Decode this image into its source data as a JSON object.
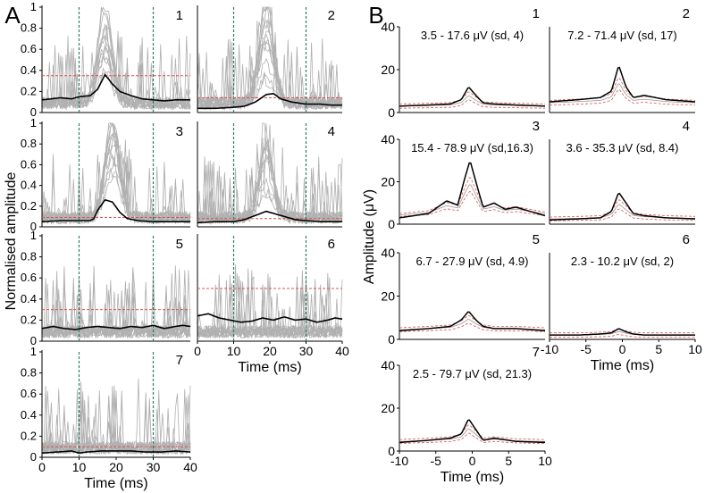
{
  "chart_data": {
    "panel_labels": [
      "A",
      "B"
    ],
    "panelA": {
      "type": "line",
      "ylabel": "Normalised amplitude",
      "xlabel": "Time (ms)",
      "xlim": [
        0,
        40
      ],
      "ylim": [
        0,
        1
      ],
      "yticks": [
        "0",
        "0.2",
        "0.4",
        "0.6",
        "0.8",
        "1"
      ],
      "xticks": [
        "0",
        "10",
        "20",
        "30",
        "40"
      ],
      "window_markers_ms": [
        10,
        30
      ],
      "threshold_color": "#d9534f",
      "marker_color": "#2e7d6b",
      "trace_color": "#b0b0b0",
      "mean_color": "#000000",
      "subplots": [
        {
          "id": "1",
          "threshold": 0.35,
          "mean_x": [
            0,
            5,
            8,
            10,
            13,
            15,
            17,
            19,
            21,
            24,
            27,
            30,
            33,
            36,
            40
          ],
          "mean_y": [
            0.12,
            0.14,
            0.13,
            0.15,
            0.16,
            0.22,
            0.36,
            0.27,
            0.2,
            0.16,
            0.13,
            0.12,
            0.11,
            0.12,
            0.12
          ]
        },
        {
          "id": "2",
          "threshold": 0.14,
          "mean_x": [
            0,
            5,
            10,
            13,
            16,
            19,
            21,
            23,
            26,
            30,
            34,
            37,
            40
          ],
          "mean_y": [
            0.04,
            0.04,
            0.05,
            0.06,
            0.1,
            0.17,
            0.18,
            0.13,
            0.1,
            0.08,
            0.08,
            0.07,
            0.07
          ]
        },
        {
          "id": "3",
          "threshold": 0.09,
          "mean_x": [
            0,
            5,
            10,
            13,
            14,
            15,
            17,
            19,
            21,
            23,
            26,
            30,
            34,
            37,
            40
          ],
          "mean_y": [
            0.05,
            0.06,
            0.06,
            0.06,
            0.08,
            0.16,
            0.26,
            0.24,
            0.14,
            0.08,
            0.06,
            0.05,
            0.05,
            0.05,
            0.05
          ]
        },
        {
          "id": "4",
          "threshold": 0.08,
          "mean_x": [
            0,
            5,
            10,
            13,
            16,
            19,
            21,
            24,
            27,
            30,
            34,
            37,
            40
          ],
          "mean_y": [
            0.04,
            0.05,
            0.05,
            0.07,
            0.11,
            0.15,
            0.13,
            0.1,
            0.07,
            0.06,
            0.05,
            0.05,
            0.05
          ]
        },
        {
          "id": "5",
          "threshold": 0.3,
          "mean_x": [
            0,
            3,
            6,
            9,
            12,
            15,
            18,
            21,
            24,
            27,
            30,
            33,
            36,
            38,
            40
          ],
          "mean_y": [
            0.12,
            0.14,
            0.12,
            0.11,
            0.13,
            0.14,
            0.13,
            0.12,
            0.14,
            0.13,
            0.15,
            0.12,
            0.14,
            0.15,
            0.14
          ]
        },
        {
          "id": "6",
          "threshold": 0.5,
          "mean_x": [
            0,
            3,
            6,
            9,
            12,
            15,
            18,
            21,
            24,
            27,
            30,
            33,
            36,
            38,
            40
          ],
          "mean_y": [
            0.24,
            0.26,
            0.22,
            0.2,
            0.18,
            0.19,
            0.22,
            0.2,
            0.23,
            0.2,
            0.21,
            0.18,
            0.2,
            0.22,
            0.21
          ]
        },
        {
          "id": "7",
          "threshold": 0.1,
          "mean_x": [
            0,
            4,
            8,
            10,
            12,
            16,
            20,
            24,
            28,
            32,
            36,
            40
          ],
          "mean_y": [
            0.04,
            0.05,
            0.06,
            0.04,
            0.05,
            0.06,
            0.06,
            0.06,
            0.05,
            0.05,
            0.06,
            0.05
          ]
        }
      ]
    },
    "panelB": {
      "type": "line",
      "ylabel": "Amplitude (μV)",
      "xlabel": "Time (ms)",
      "xlim": [
        -10,
        10
      ],
      "ylim": [
        0,
        40
      ],
      "yticks": [
        "0",
        "20",
        "40"
      ],
      "xticks": [
        "-10",
        "-5",
        "0",
        "5",
        "10"
      ],
      "subplots": [
        {
          "id": "1",
          "annotation": "3.5 - 17.6 μV (sd, 4)",
          "x": [
            -10,
            -6,
            -3,
            -1.5,
            -0.5,
            0.5,
            1.5,
            3,
            6,
            10
          ],
          "y": [
            3,
            3.5,
            4,
            6,
            12,
            8,
            4.5,
            4,
            3.5,
            3
          ],
          "baseline": 3
        },
        {
          "id": "2",
          "annotation": "7.2 - 71.4 μV (sd, 17)",
          "x": [
            -10,
            -6,
            -3,
            -1.5,
            -0.5,
            0.5,
            1.5,
            3,
            6,
            10
          ],
          "y": [
            5,
            6,
            7,
            10,
            22,
            12,
            7,
            8,
            6,
            5
          ],
          "baseline": 4
        },
        {
          "id": "3",
          "annotation": "15.4 - 78.9 μV (sd,16.3)",
          "x": [
            -10,
            -6,
            -3.5,
            -2,
            -1,
            -0.3,
            0.5,
            1.5,
            3,
            4.5,
            6,
            10
          ],
          "y": [
            3,
            5,
            11,
            9,
            22,
            30,
            20,
            8,
            10,
            7,
            8,
            4
          ],
          "baseline": 6
        },
        {
          "id": "4",
          "annotation": "3.6 - 35.3 μV (sd, 8.4)",
          "x": [
            -10,
            -6,
            -3,
            -1.5,
            -0.5,
            0.5,
            1.5,
            3,
            6,
            10
          ],
          "y": [
            2,
            2.5,
            3,
            6,
            15,
            10,
            5,
            4,
            3,
            2.5
          ],
          "baseline": 3
        },
        {
          "id": "5",
          "annotation": "6.7 - 27.9 μV (sd, 4.9)",
          "x": [
            -10,
            -6,
            -3,
            -1.5,
            -0.5,
            0.5,
            1.5,
            3,
            6,
            10
          ],
          "y": [
            4,
            5,
            6,
            9,
            13,
            9,
            6,
            5,
            5,
            4
          ],
          "baseline": 5
        },
        {
          "id": "6",
          "annotation": "2.3 - 10.2 μV (sd, 2)",
          "x": [
            -10,
            -6,
            -3,
            -1.5,
            -0.5,
            0.5,
            1.5,
            3,
            6,
            10
          ],
          "y": [
            2,
            2,
            2.5,
            3,
            5,
            3.5,
            2.5,
            2,
            2,
            2
          ],
          "baseline": 2
        },
        {
          "id": "7",
          "annotation": "2.5 - 79.7 μV (sd, 21.3)",
          "x": [
            -10,
            -6,
            -3,
            -1.5,
            -0.5,
            0.5,
            1.5,
            3,
            6,
            10
          ],
          "y": [
            4,
            5,
            6,
            8,
            15,
            10,
            5,
            6,
            4.5,
            4
          ],
          "baseline": 5
        }
      ]
    }
  }
}
